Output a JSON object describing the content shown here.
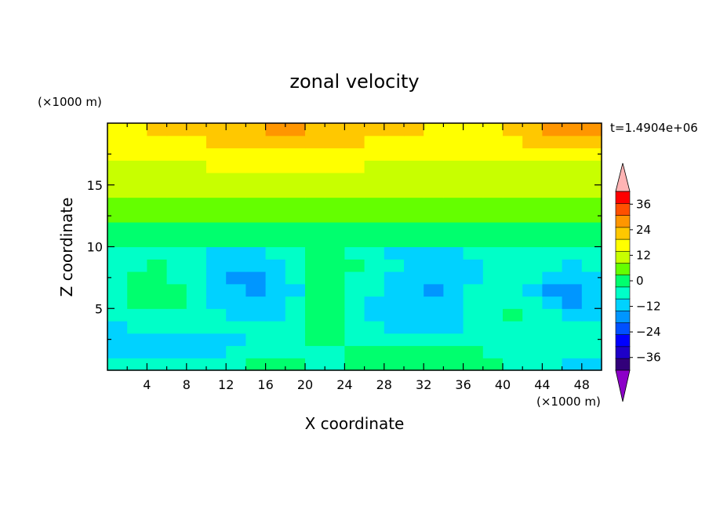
{
  "chart_data": {
    "type": "heatmap",
    "title": "zonal velocity",
    "xlabel": "X coordinate",
    "ylabel": "Z coordinate",
    "x_unit": "(×1000 m)",
    "y_unit": "(×1000 m)",
    "time_label": "t=1.4904e+06",
    "xlim": [
      0,
      50
    ],
    "ylim": [
      0,
      20
    ],
    "x_ticks": [
      4,
      8,
      12,
      16,
      20,
      24,
      28,
      32,
      36,
      40,
      44,
      48
    ],
    "y_ticks": [
      5,
      10,
      15
    ],
    "x_minor_ticks": [
      2,
      6,
      10,
      14,
      18,
      22,
      26,
      30,
      34,
      38,
      42,
      46
    ],
    "y_minor_ticks": [
      2.5,
      7.5,
      12.5,
      17.5
    ],
    "colorbar": {
      "levels": [
        -42,
        -36,
        -30,
        -24,
        -18,
        -12,
        -6,
        0,
        6,
        12,
        18,
        24,
        30,
        36,
        42
      ],
      "colors": [
        "#32007a",
        "#1e00c8",
        "#0000ff",
        "#0050ff",
        "#0096ff",
        "#00d2ff",
        "#00ffc8",
        "#00ff6e",
        "#64ff00",
        "#c8ff00",
        "#ffff00",
        "#ffc800",
        "#ff9600",
        "#ff5000",
        "#ff0000"
      ],
      "under_color": "#8c00c8",
      "over_color": "#ffb4b4",
      "tick_labels": [
        "36",
        "24",
        "12",
        "0",
        "−12",
        "−24",
        "−36"
      ],
      "tick_values": [
        36,
        24,
        12,
        0,
        -12,
        -24,
        -36
      ]
    },
    "field": {
      "grid_cols": 25,
      "grid_rows": 20,
      "note_units": "zonal velocity, same units as colorbar"
    }
  }
}
